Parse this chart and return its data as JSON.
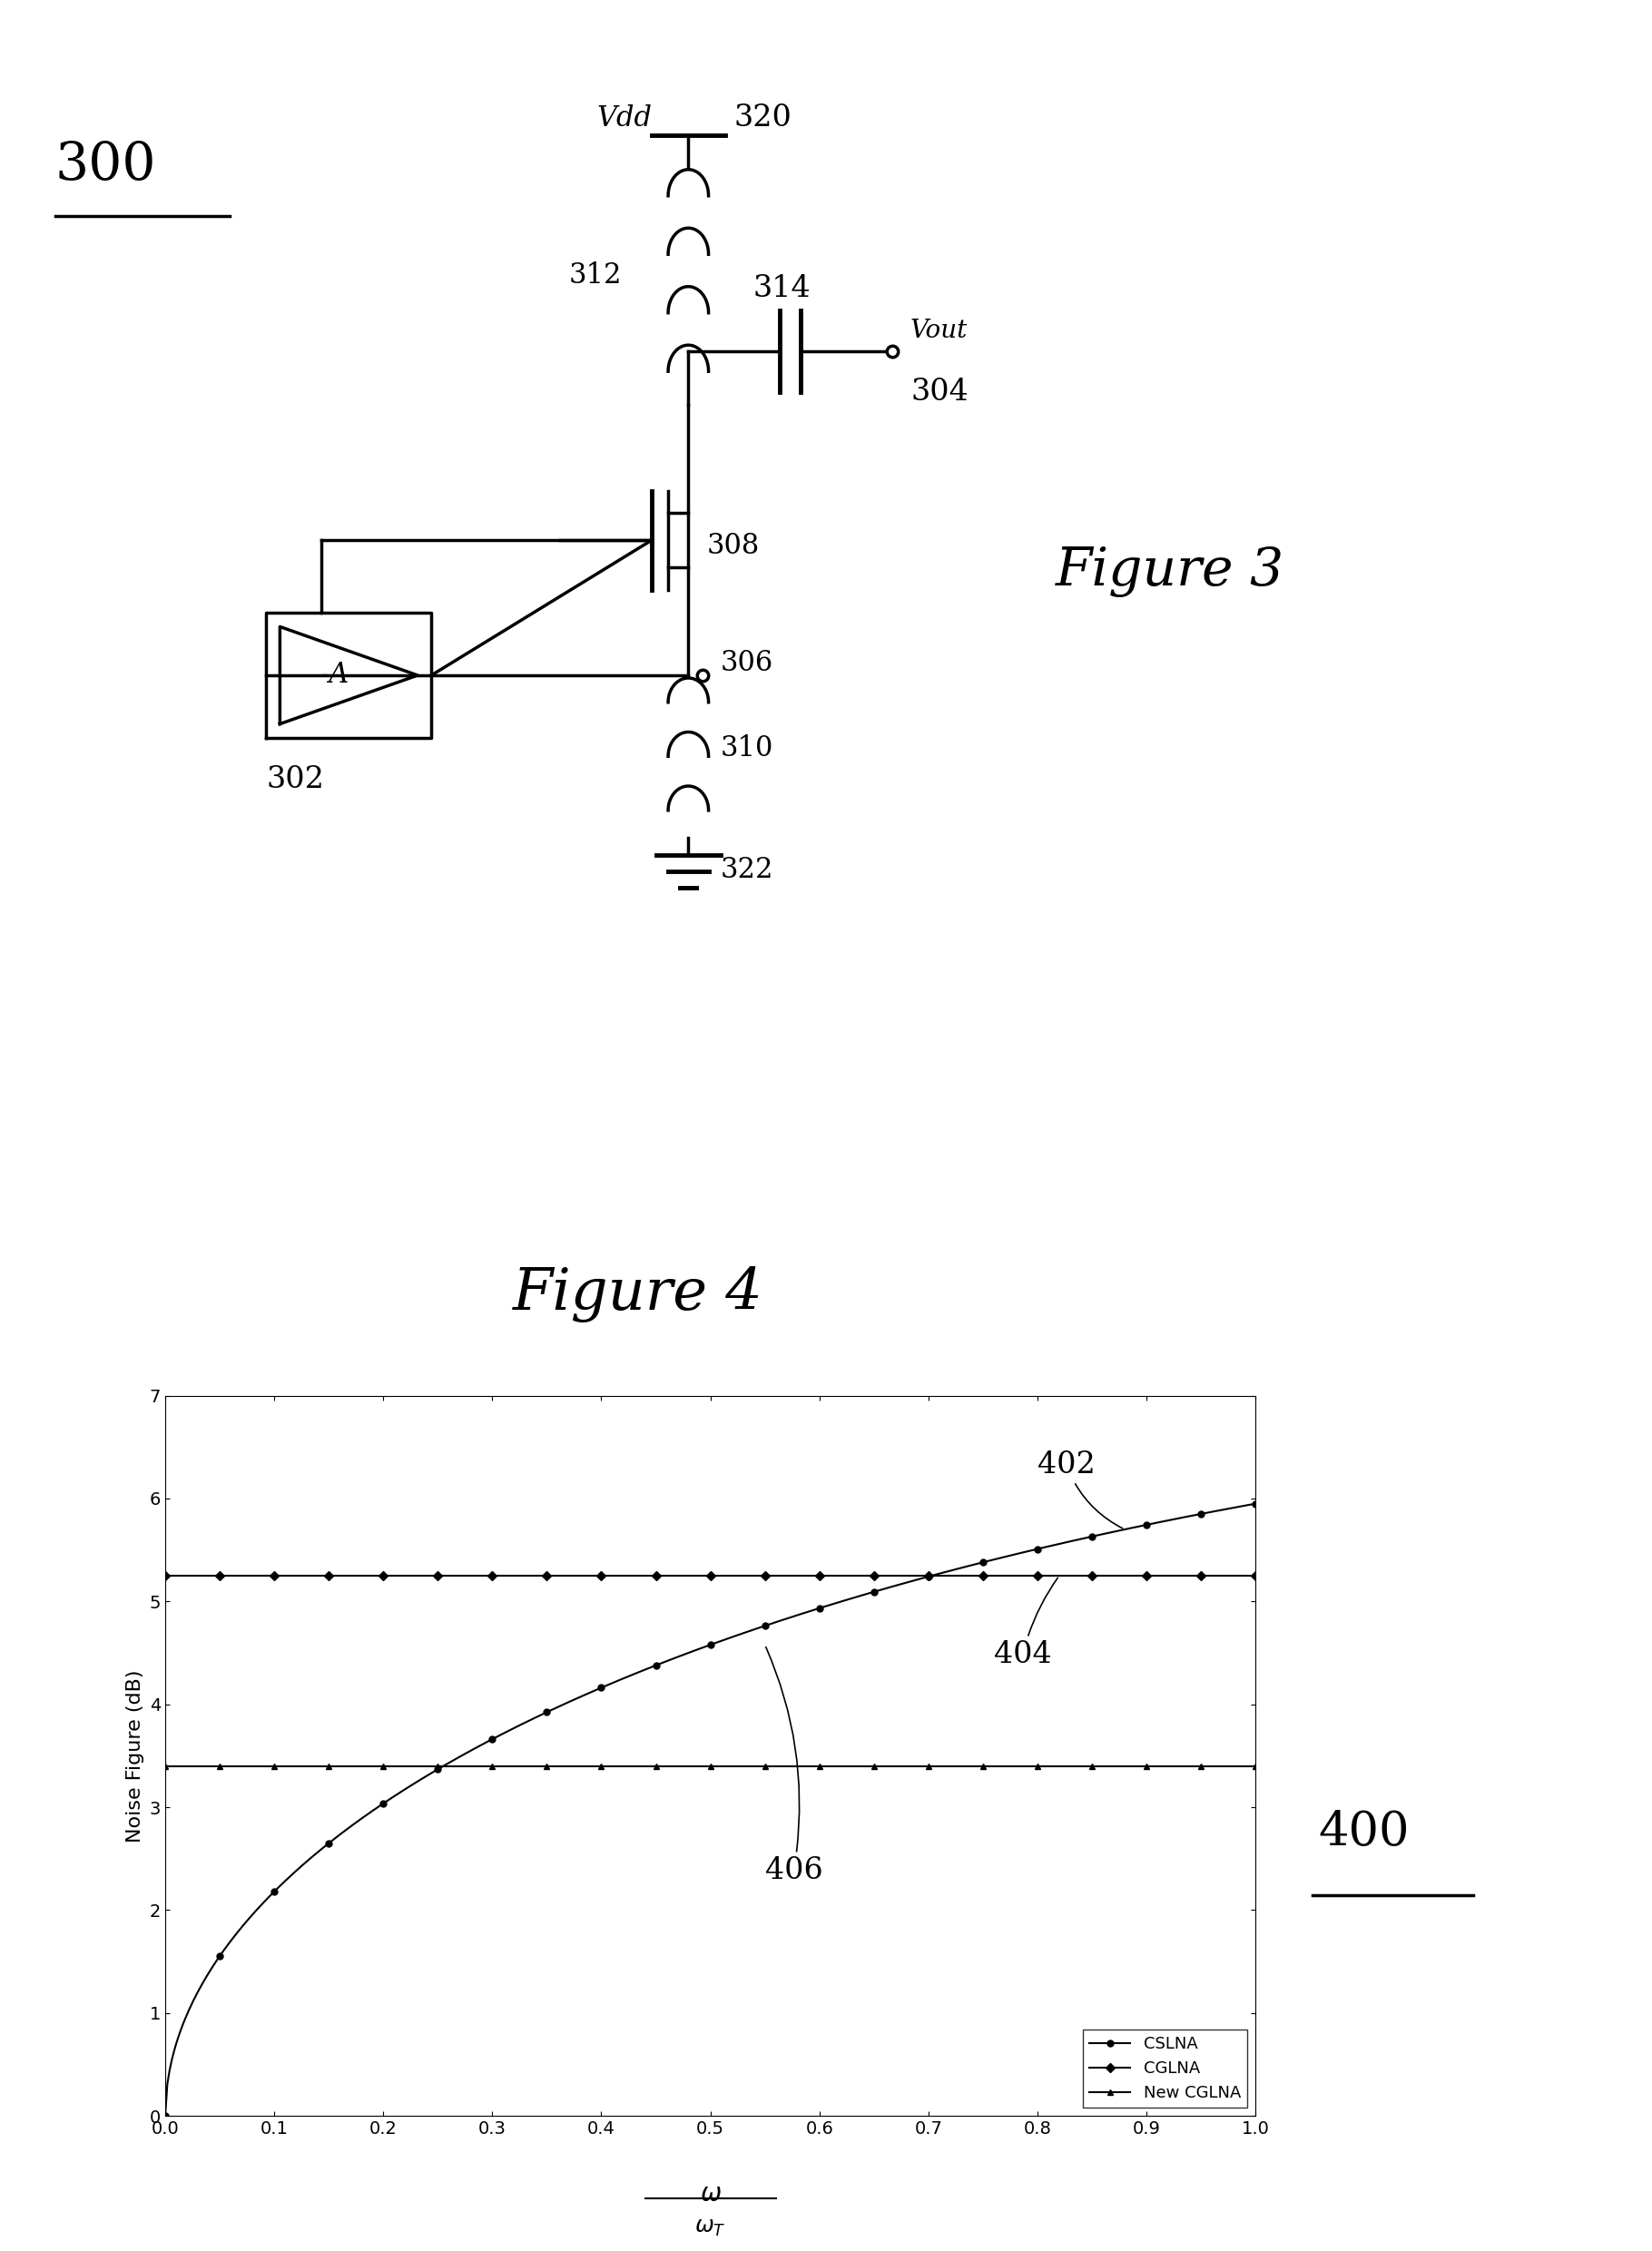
{
  "fig_label_300": "300",
  "fig_label_400": "400",
  "fig3_label": "Figure 3",
  "fig4_label": "Figure 4",
  "label_302": "302",
  "label_304": "304",
  "label_306": "306",
  "label_308": "308",
  "label_310": "310",
  "label_312": "312",
  "label_314": "314",
  "label_320": "320",
  "label_322": "322",
  "label_Vdd": "Vdd",
  "label_Vout": "Vout",
  "label_402": "402",
  "label_404": "404",
  "label_406": "406",
  "ylabel": "Noise Figure (dB)",
  "ylim": [
    0,
    7
  ],
  "xlim": [
    0,
    1
  ],
  "yticks": [
    0,
    1,
    2,
    3,
    4,
    5,
    6,
    7
  ],
  "xticks": [
    0,
    0.1,
    0.2,
    0.3,
    0.4,
    0.5,
    0.6,
    0.7,
    0.8,
    0.9,
    1
  ],
  "cslna_label": "CSLNA",
  "cglna_label": "CGLNA",
  "newcglna_label": "New CGLNA",
  "cglna_flat": 5.25,
  "newcglna_flat": 3.4,
  "background": "#ffffff"
}
